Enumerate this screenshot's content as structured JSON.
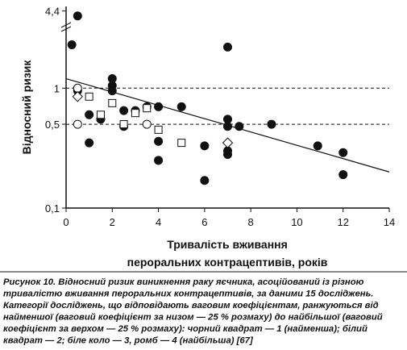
{
  "chart_data": {
    "type": "scatter",
    "log_y": true,
    "ylabel": "Відносний ризик",
    "xlabel": [
      "Тривалість вживання",
      "пероральних контрацептивів, років"
    ],
    "caption": [
      "Рисунок 10. Відносний ризик виникнення раку яєчника, асоційований із різною",
      "тривалістю вживання пероральних контрацептивів, за даними 15 досліджень.",
      "Категорії досліджень, що відповідають ваговим коефіцієнтам, ранжуються від",
      "найменшої (ваговий коефіцієнт за низом — 25 % розмаху) до найбільшої (ваговий",
      "коефіцієнт за верхом — 25 % розмаху): чорний квадрат — 1 (найменша); білий",
      "квадрат — 2; біле коло — 3, ромб — 4 (найбільша) [67]"
    ],
    "xlim": [
      0,
      14
    ],
    "xticks": [
      0,
      2,
      4,
      6,
      8,
      10,
      12,
      14
    ],
    "ylim": [
      0.1,
      4.8
    ],
    "yticks": [
      {
        "value": 0.1,
        "label": "0,1"
      },
      {
        "value": 0.5,
        "label": "0,5"
      },
      1,
      {
        "value": 4.4,
        "label": "4,4"
      }
    ],
    "reference_lines": [
      1,
      0.5
    ],
    "trend": {
      "x": [
        0,
        14
      ],
      "values": [
        1.2,
        0.2
      ]
    },
    "series": [
      {
        "marker": "circle",
        "color": "#111",
        "x": [
          0.25,
          0.5,
          0.5,
          1,
          1,
          1.5,
          2,
          2,
          2,
          2.5,
          2.5,
          3,
          3.5,
          4,
          4,
          4,
          5,
          6,
          6,
          7,
          7,
          7,
          7,
          7,
          7.5,
          8.9,
          10.9,
          12,
          12
        ],
        "values": [
          2.3,
          4.0,
          0.95,
          0.6,
          0.35,
          0.55,
          1.2,
          1.05,
          0.95,
          0.65,
          0.48,
          0.65,
          0.7,
          0.7,
          0.36,
          0.25,
          0.7,
          0.33,
          0.17,
          2.2,
          0.48,
          0.55,
          0.3,
          0.28,
          0.48,
          0.5,
          0.33,
          0.29,
          0.19
        ]
      },
      {
        "marker": "square",
        "color": "#fff",
        "x": [
          1,
          1.5,
          2,
          2.5,
          3,
          3.5,
          4,
          5
        ],
        "values": [
          0.85,
          0.6,
          0.75,
          0.5,
          0.62,
          0.68,
          0.45,
          0.35
        ]
      },
      {
        "marker": "circle",
        "color": "#fff",
        "x": [
          0.5,
          0.5,
          3.5
        ],
        "values": [
          1.0,
          0.5,
          0.5
        ]
      },
      {
        "marker": "diamond",
        "color": "#fff",
        "x": [
          0.5,
          7
        ],
        "values": [
          0.85,
          0.35
        ]
      }
    ]
  }
}
